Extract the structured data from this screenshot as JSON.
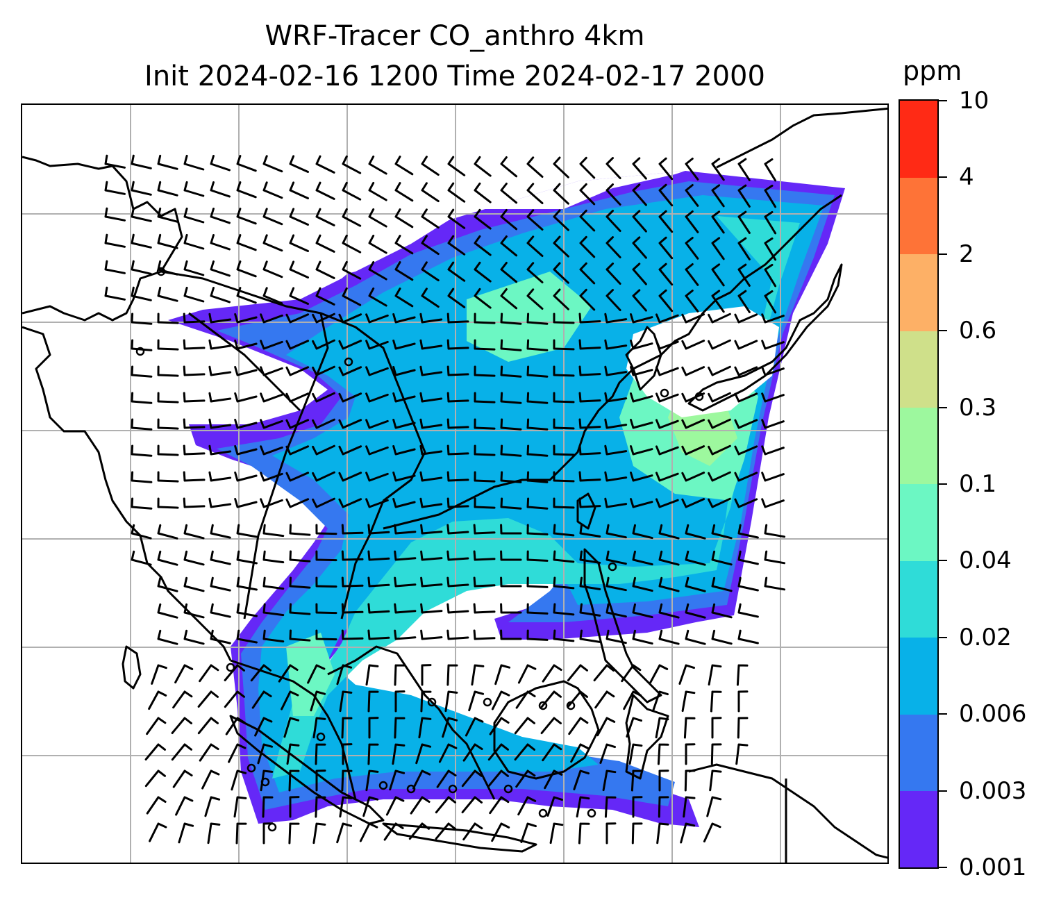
{
  "chart_data": {
    "type": "heatmap",
    "title_line1": "WRF-Tracer CO_anthro 4km",
    "title_line2": "Init 2024-02-16 1200 Time 2024-02-17 2000",
    "map_projection": "lambert conformal",
    "map_region": "South and East Asia",
    "overlays": [
      "coastlines",
      "country borders",
      "wind barbs",
      "gridlines"
    ],
    "grid": true,
    "colorbar": {
      "placement": "right",
      "unit": "ppm",
      "levels": [
        "0.001",
        "0.003",
        "0.006",
        "0.02",
        "0.04",
        "0.1",
        "0.3",
        "0.6",
        "2",
        "4",
        "10"
      ],
      "colors": [
        "#6528f7",
        "#3578f0",
        "#08b1e8",
        "#2fdcd8",
        "#6cf7c3",
        "#9df89e",
        "#cfe08a",
        "#fdb066",
        "#fe7337",
        "#ff2a15"
      ]
    }
  }
}
